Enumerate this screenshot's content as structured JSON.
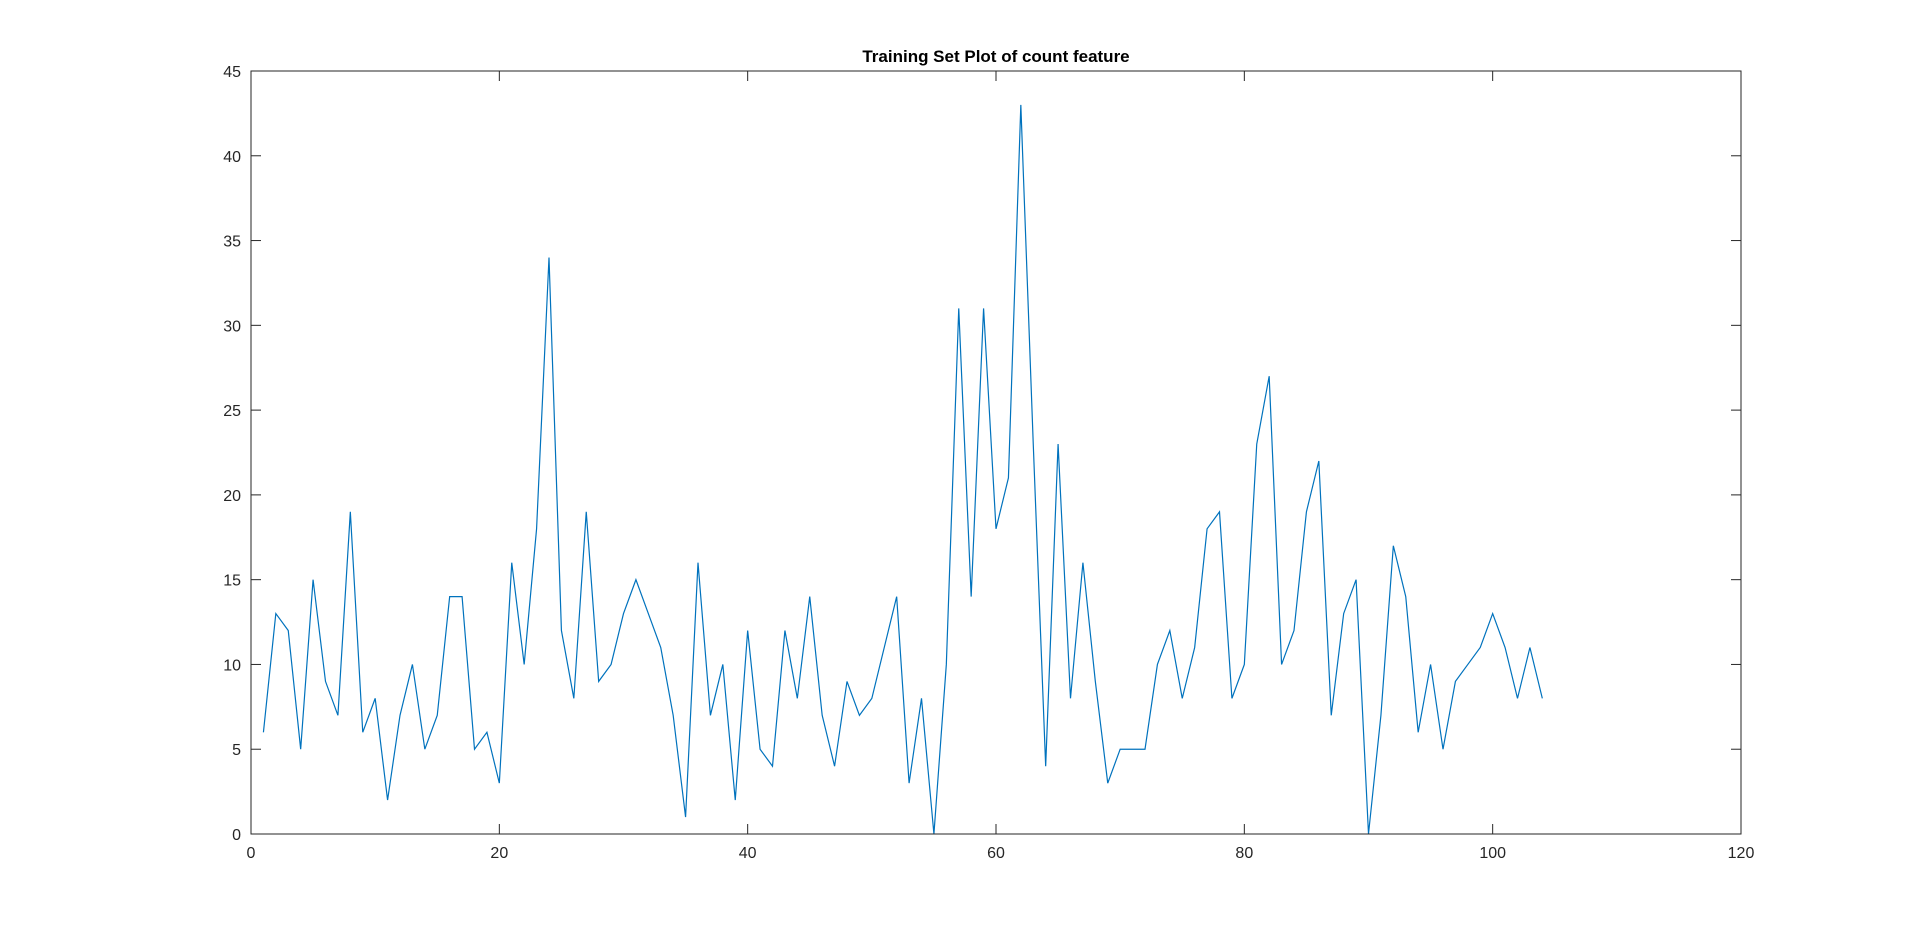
{
  "chart_data": {
    "type": "line",
    "title": "Training Set Plot of count feature",
    "xlabel": "",
    "ylabel": "",
    "xlim": [
      0,
      120
    ],
    "ylim": [
      0,
      45
    ],
    "xticks": [
      0,
      20,
      40,
      60,
      80,
      100,
      120
    ],
    "yticks": [
      0,
      5,
      10,
      15,
      20,
      25,
      30,
      35,
      40,
      45
    ],
    "grid": false,
    "legend": "none",
    "series": [
      {
        "color": "#0072BD",
        "x": [
          1,
          2,
          3,
          4,
          5,
          6,
          7,
          8,
          9,
          10,
          11,
          12,
          13,
          14,
          15,
          16,
          17,
          18,
          19,
          20,
          21,
          22,
          23,
          24,
          25,
          26,
          27,
          28,
          29,
          30,
          31,
          32,
          33,
          34,
          35,
          36,
          37,
          38,
          39,
          40,
          41,
          42,
          43,
          44,
          45,
          46,
          47,
          48,
          49,
          50,
          51,
          52,
          53,
          54,
          55,
          56,
          57,
          58,
          59,
          60,
          61,
          62,
          63,
          64,
          65,
          66,
          67,
          68,
          69,
          70,
          71,
          72,
          73,
          74,
          75,
          76,
          77,
          78,
          79,
          80,
          81,
          82,
          83,
          84,
          85,
          86,
          87,
          88,
          89,
          90,
          91,
          92,
          93,
          94,
          95,
          96,
          97,
          98,
          99,
          100,
          101,
          102,
          103,
          104
        ],
        "values": [
          6,
          13,
          12,
          5,
          15,
          9,
          7,
          19,
          6,
          8,
          2,
          7,
          10,
          5,
          7,
          14,
          14,
          5,
          6,
          3,
          16,
          10,
          18,
          34,
          12,
          8,
          19,
          9,
          10,
          13,
          15,
          13,
          11,
          7,
          1,
          16,
          7,
          10,
          2,
          12,
          5,
          4,
          12,
          8,
          14,
          7,
          4,
          9,
          7,
          8,
          11,
          14,
          3,
          8,
          0,
          10,
          31,
          14,
          31,
          18,
          21,
          43,
          23,
          4,
          23,
          8,
          16,
          9,
          3,
          5,
          5,
          5,
          10,
          12,
          8,
          11,
          18,
          19,
          8,
          10,
          23,
          27,
          10,
          12,
          19,
          22,
          7,
          13,
          15,
          0,
          7,
          17,
          14,
          6,
          10,
          5,
          9,
          10,
          11,
          13,
          11,
          8,
          11,
          8
        ]
      }
    ]
  }
}
